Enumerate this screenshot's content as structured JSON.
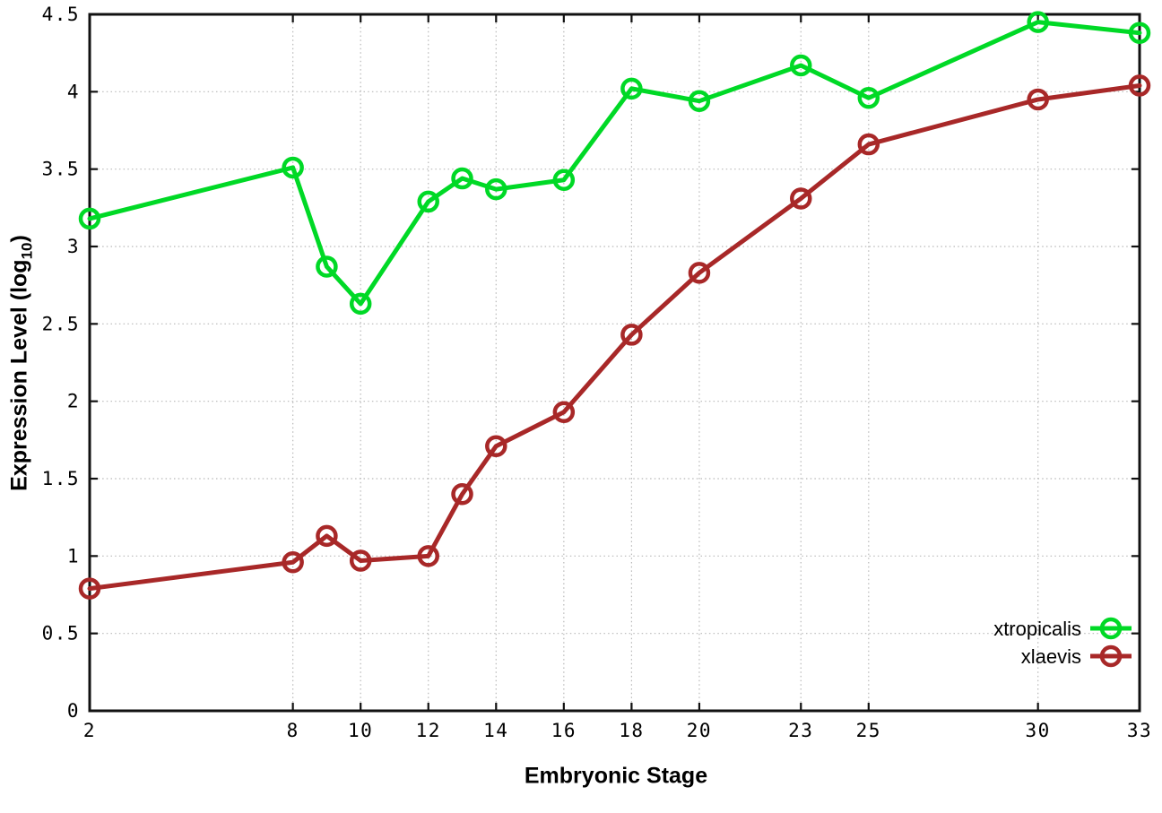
{
  "chart_data": {
    "type": "line",
    "title": "",
    "xlabel": "Embryonic Stage",
    "ylabel": "Expression Level (log10)",
    "ylabel_parts": {
      "pre": "Expression Level (log",
      "sub": "10",
      "post": ")"
    },
    "x": [
      2,
      8,
      9,
      10,
      12,
      13,
      14,
      16,
      18,
      20,
      23,
      25,
      30,
      33
    ],
    "series": [
      {
        "name": "xtropicalis",
        "color": "#00d926",
        "values": [
          3.18,
          3.51,
          2.87,
          2.63,
          3.29,
          3.44,
          3.37,
          3.43,
          4.02,
          3.94,
          4.17,
          3.96,
          4.45,
          4.38
        ]
      },
      {
        "name": "xlaevis",
        "color": "#a82828",
        "values": [
          0.79,
          0.96,
          1.13,
          0.97,
          1.0,
          1.4,
          1.71,
          1.93,
          2.43,
          2.83,
          3.31,
          3.66,
          3.95,
          4.04
        ]
      }
    ],
    "xlim": [
      2,
      33
    ],
    "ylim": [
      0,
      4.5
    ],
    "xticks": {
      "values": [
        2,
        8,
        10,
        12,
        14,
        16,
        18,
        20,
        23,
        25,
        30,
        33
      ],
      "labels": [
        "2",
        "8",
        "10",
        "12",
        "14",
        "16",
        "18",
        "20",
        "23",
        "25",
        "30",
        "33"
      ]
    },
    "yticks": {
      "values": [
        0,
        0.5,
        1,
        1.5,
        2,
        2.5,
        3,
        3.5,
        4,
        4.5
      ],
      "labels": [
        "0",
        "0.5",
        "1",
        "1.5",
        "2",
        "2.5",
        "3",
        "3.5",
        "4",
        "4.5"
      ]
    },
    "grid": true,
    "grid_color": "#b8b8b8",
    "axis_color": "#111111",
    "background_color": "#ffffff",
    "legend_position": "bottom-right",
    "marker": "open-circle"
  }
}
